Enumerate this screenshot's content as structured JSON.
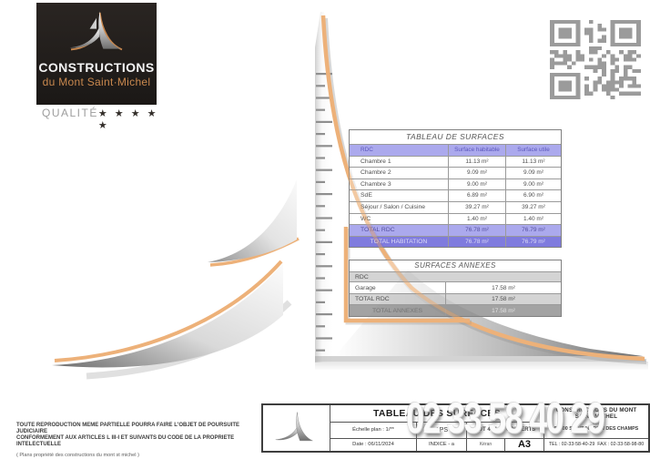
{
  "logo": {
    "line1": "CONSTRUCTIONS",
    "line2": "du Mont Saint·Michel",
    "quality_label": "QUALITÉ",
    "stars": "★ ★ ★ ★ ★"
  },
  "tables": {
    "surfaces": {
      "title": "TABLEAU DE SURFACES",
      "columns": [
        "RDC",
        "Surface habitable",
        "Surface utile"
      ],
      "rows": [
        {
          "label": "Chambre 1",
          "habitable": "11.13 m²",
          "utile": "11.13 m²"
        },
        {
          "label": "Chambre 2",
          "habitable": "9.09 m²",
          "utile": "9.09 m²"
        },
        {
          "label": "Chambre 3",
          "habitable": "9.00 m²",
          "utile": "9.00 m²"
        },
        {
          "label": "SdE",
          "habitable": "6.89 m²",
          "utile": "6.90 m²"
        },
        {
          "label": "Séjour / Salon / Cuisine",
          "habitable": "39.27 m²",
          "utile": "39.27 m²"
        },
        {
          "label": "WC",
          "habitable": "1.40 m²",
          "utile": "1.40 m²"
        }
      ],
      "total_rdc": {
        "label": "TOTAL RDC",
        "habitable": "76.78 m²",
        "utile": "76.79 m²"
      },
      "total_habitation": {
        "label": "TOTAL HABITATION",
        "habitable": "76.78 m²",
        "utile": "76.79 m²"
      }
    },
    "annexes": {
      "title": "SURFACES ANNEXES",
      "group_label": "RDC",
      "rows": [
        {
          "label": "Garage",
          "value": "17.58 m²"
        }
      ],
      "total_rdc": {
        "label": "TOTAL RDC",
        "value": "17.58 m²"
      },
      "total_annexes": {
        "label": "TOTAL ANNEXES",
        "value": "17.58 m²"
      }
    }
  },
  "title_block": {
    "sheet_title": "TABLEAU DES SURFACES",
    "scale": "Échelle plan : 1/**",
    "phase": "APS",
    "lot": "LOT 4 - Les COLVERTS",
    "date": "Date : 06/11/2024",
    "indice": "INDICE - a",
    "author": "Kéran",
    "format": "A3",
    "company": {
      "name_line1": "CONSTRUCTIONS DU MONT",
      "name_line2": "SAINT MICHEL",
      "address_line": "Luc",
      "city": "50300 SAINT MARTIN DES CHAMPS",
      "tel_fax": "TEL : 02-33-58-40-29  FAX : 02-33-58-98-80"
    }
  },
  "watermark": {
    "text": "02 33 58 40 29"
  },
  "legal": {
    "line1": "TOUTE REPRODUCTION MEME PARTIELLE POURRA FAIRE L'OBJET DE POURSUITE JUDICIAIRE",
    "line2": "CONFORMEMENT AUX ARTICLES L III-I ET SUIVANTS DU CODE DE LA PROPRIETE INTELECTUELLE",
    "line3": "( Plans propriété des constructions du mont st michel )"
  },
  "colors": {
    "accent_orange": "#edb179",
    "brand_orange": "#c9884e",
    "purple_header": "#b1aeea",
    "purple_total": "#8a86e0",
    "gray_row": "#d6d6d6",
    "gray_total": "#b3b3b3",
    "qr_gray": "#9b9b9b"
  }
}
